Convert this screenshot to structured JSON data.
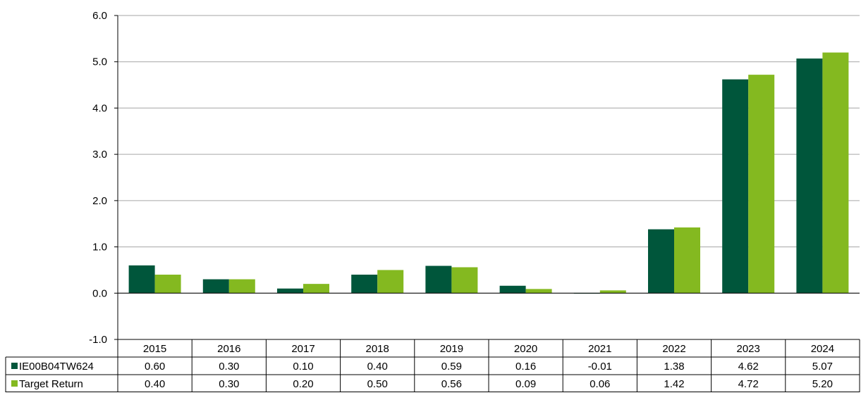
{
  "chart_data": {
    "type": "bar",
    "categories": [
      "2015",
      "2016",
      "2017",
      "2018",
      "2019",
      "2020",
      "2021",
      "2022",
      "2023",
      "2024"
    ],
    "series": [
      {
        "name": "IE00B04TW624",
        "color": "#00563b",
        "values": [
          0.6,
          0.3,
          0.1,
          0.4,
          0.59,
          0.16,
          -0.01,
          1.38,
          4.62,
          5.07
        ],
        "labels": [
          "0.60",
          "0.30",
          "0.10",
          "0.40",
          "0.59",
          "0.16",
          "-0.01",
          "1.38",
          "4.62",
          "5.07"
        ]
      },
      {
        "name": "Target Return",
        "color": "#84b920",
        "values": [
          0.4,
          0.3,
          0.2,
          0.5,
          0.56,
          0.09,
          0.06,
          1.42,
          4.72,
          5.2
        ],
        "labels": [
          "0.40",
          "0.30",
          "0.20",
          "0.50",
          "0.56",
          "0.09",
          "0.06",
          "1.42",
          "4.72",
          "5.20"
        ]
      }
    ],
    "ylim": [
      -1.0,
      6.0
    ],
    "yticks": [
      "6.0",
      "5.0",
      "4.0",
      "3.0",
      "2.0",
      "1.0",
      "0.0",
      "-1.0"
    ],
    "ytick_values": [
      6,
      5,
      4,
      3,
      2,
      1,
      0,
      -1
    ],
    "grid": true,
    "legend": "data-table"
  }
}
